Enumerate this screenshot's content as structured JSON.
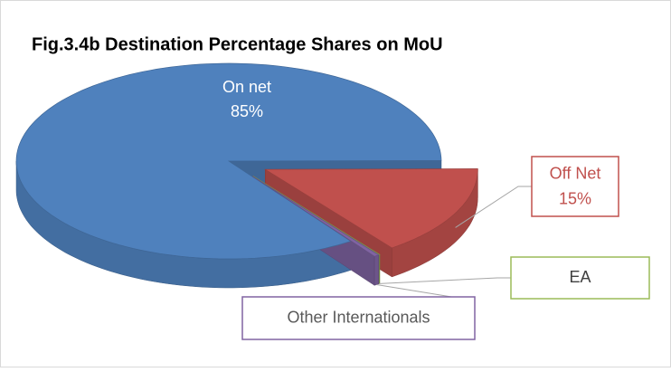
{
  "chart_data": {
    "type": "pie3d",
    "title": "Fig.3.4b Destination Percentage Shares on MoU",
    "categories": [
      "On net",
      "Off Net",
      "EA",
      "Other Internationals"
    ],
    "values": [
      85,
      15,
      0.05,
      0.4
    ],
    "value_labels": [
      "85%",
      "15%",
      null,
      null
    ],
    "colors": [
      "#4f81bd",
      "#c0504d",
      "#9bbb59",
      "#8064a2"
    ],
    "exploded": [
      false,
      true,
      true,
      true
    ]
  }
}
